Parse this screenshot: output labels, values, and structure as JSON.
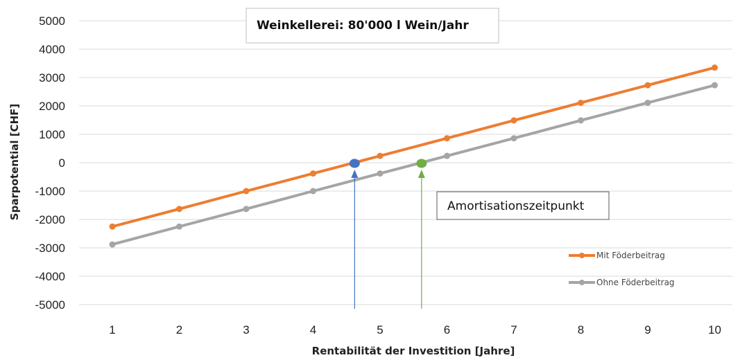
{
  "chart_data": {
    "type": "line",
    "title": "Weinkellerei: 80'000 l Wein/Jahr",
    "xlabel": "Rentabilität der Investition [Jahre]",
    "ylabel": "Sparpotential [CHF]",
    "x": [
      1,
      2,
      3,
      4,
      5,
      6,
      7,
      8,
      9,
      10
    ],
    "ylim": [
      -5000,
      5000
    ],
    "yticks": [
      5000,
      4000,
      3000,
      2000,
      1000,
      0,
      -1000,
      -2000,
      -3000,
      -4000,
      -5000
    ],
    "grid": true,
    "legend_position": "bottom-right",
    "series": [
      {
        "name": "Mit Föderbeitrag",
        "color": "#ED7D31",
        "values": [
          -2250,
          -1630,
          -1000,
          -380,
          240,
          860,
          1490,
          2110,
          2730,
          3350
        ]
      },
      {
        "name": "Ohne Föderbeitrag",
        "color": "#A5A5A5",
        "values": [
          -2880,
          -2250,
          -1630,
          -1000,
          -380,
          240,
          860,
          1490,
          2110,
          2730
        ]
      }
    ],
    "annotations": [
      {
        "text": "Amortisationszeitpunkt",
        "markers": [
          {
            "x": 4.62,
            "y": 0,
            "color": "#4472C4"
          },
          {
            "x": 5.62,
            "y": 0,
            "color": "#70AD47"
          }
        ]
      }
    ]
  }
}
